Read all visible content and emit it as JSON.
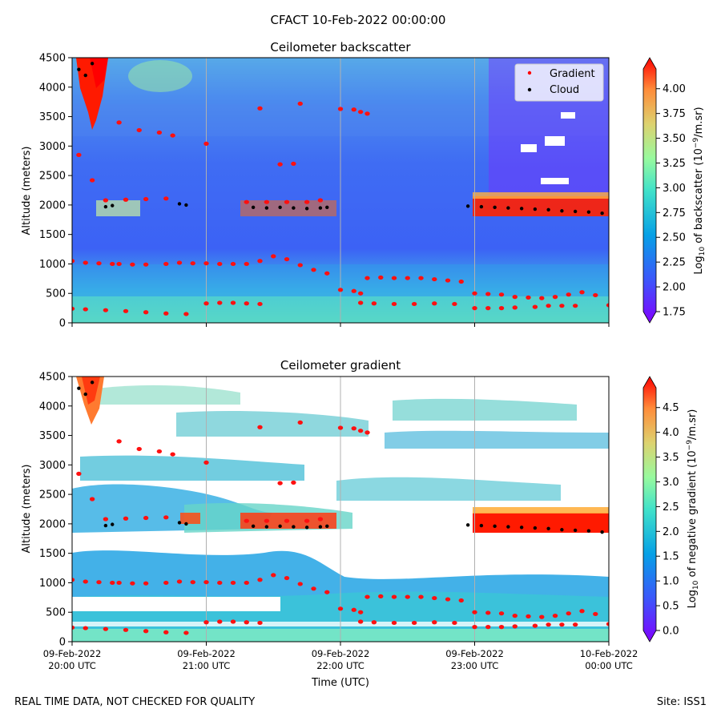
{
  "figure": {
    "suptitle": "CFACT 10-Feb-2022 00:00:00",
    "footer_left": "REAL TIME DATA, NOT CHECKED FOR QUALITY",
    "footer_right": "Site: ISS1"
  },
  "chart_data": [
    {
      "type": "heatmap",
      "title": "Ceilometer backscatter",
      "ylabel": "Altitude (meters)",
      "xlabel": "",
      "ylim": [
        0,
        4500
      ],
      "yticks": [
        "0",
        "500",
        "1000",
        "1500",
        "2000",
        "2500",
        "3000",
        "3500",
        "4000",
        "4500"
      ],
      "xticks": [],
      "colorbar": {
        "label": "Log10 of backscatter (10^-9/m.sr)",
        "range": [
          1.75,
          4.2
        ],
        "ticks": [
          "1.75",
          "2.00",
          "2.25",
          "2.50",
          "2.75",
          "3.00",
          "3.25",
          "3.50",
          "3.75",
          "4.00"
        ],
        "colormap": "rainbow"
      },
      "legend": {
        "placement": "top-right",
        "entries": [
          {
            "name": "Gradient",
            "color": "#ff0000"
          },
          {
            "name": "Cloud",
            "color": "#000000"
          }
        ]
      },
      "grid": true
    },
    {
      "type": "heatmap",
      "title": "Ceilometer gradient",
      "ylabel": "Altitude (meters)",
      "xlabel": "Time (UTC)",
      "ylim": [
        0,
        4500
      ],
      "yticks": [
        "0",
        "500",
        "1000",
        "1500",
        "2000",
        "2500",
        "3000",
        "3500",
        "4000",
        "4500"
      ],
      "xticks": [
        {
          "line1": "09-Feb-2022",
          "line2": "20:00 UTC"
        },
        {
          "line1": "09-Feb-2022",
          "line2": "21:00 UTC"
        },
        {
          "line1": "09-Feb-2022",
          "line2": "22:00 UTC"
        },
        {
          "line1": "09-Feb-2022",
          "line2": "23:00 UTC"
        },
        {
          "line1": "10-Feb-2022",
          "line2": "00:00 UTC"
        }
      ],
      "colorbar": {
        "label": "Log10 of negative gradient (10^-9/m.sr)",
        "range": [
          0,
          4.9
        ],
        "ticks": [
          "0.0",
          "0.5",
          "1.0",
          "1.5",
          "2.0",
          "2.5",
          "3.0",
          "3.5",
          "4.0",
          "4.5"
        ],
        "colormap": "rainbow"
      },
      "grid": true
    }
  ],
  "time_hours": [
    20,
    24
  ],
  "gradient_points": [
    [
      20.0,
      1050
    ],
    [
      20.1,
      1020
    ],
    [
      20.2,
      1010
    ],
    [
      20.3,
      1000
    ],
    [
      20.35,
      1000
    ],
    [
      20.45,
      990
    ],
    [
      20.55,
      990
    ],
    [
      20.7,
      1000
    ],
    [
      20.8,
      1020
    ],
    [
      20.9,
      1010
    ],
    [
      21.0,
      1010
    ],
    [
      21.1,
      1000
    ],
    [
      21.2,
      1000
    ],
    [
      21.3,
      1000
    ],
    [
      21.4,
      1050
    ],
    [
      21.5,
      1130
    ],
    [
      21.6,
      1080
    ],
    [
      21.7,
      980
    ],
    [
      21.8,
      900
    ],
    [
      21.9,
      840
    ],
    [
      20.0,
      240
    ],
    [
      20.1,
      230
    ],
    [
      20.25,
      215
    ],
    [
      20.4,
      200
    ],
    [
      20.55,
      180
    ],
    [
      20.7,
      160
    ],
    [
      20.85,
      150
    ],
    [
      21.0,
      330
    ],
    [
      21.1,
      340
    ],
    [
      21.2,
      340
    ],
    [
      21.3,
      330
    ],
    [
      21.4,
      320
    ],
    [
      22.0,
      560
    ],
    [
      22.1,
      540
    ],
    [
      22.15,
      500
    ],
    [
      22.2,
      760
    ],
    [
      22.3,
      770
    ],
    [
      22.4,
      760
    ],
    [
      22.5,
      760
    ],
    [
      22.6,
      760
    ],
    [
      22.7,
      740
    ],
    [
      22.8,
      720
    ],
    [
      22.9,
      700
    ],
    [
      23.0,
      500
    ],
    [
      23.1,
      490
    ],
    [
      23.2,
      480
    ],
    [
      23.3,
      440
    ],
    [
      23.4,
      430
    ],
    [
      23.5,
      420
    ],
    [
      23.6,
      440
    ],
    [
      23.7,
      480
    ],
    [
      23.8,
      520
    ],
    [
      23.9,
      470
    ],
    [
      24.0,
      300
    ],
    [
      22.15,
      340
    ],
    [
      22.25,
      330
    ],
    [
      22.4,
      320
    ],
    [
      22.55,
      320
    ],
    [
      22.7,
      330
    ],
    [
      22.85,
      320
    ],
    [
      23.0,
      250
    ],
    [
      23.1,
      250
    ],
    [
      23.2,
      250
    ],
    [
      23.3,
      260
    ],
    [
      23.45,
      270
    ],
    [
      23.55,
      290
    ],
    [
      23.65,
      290
    ],
    [
      23.75,
      290
    ],
    [
      20.25,
      2080
    ],
    [
      20.4,
      2090
    ],
    [
      20.55,
      2100
    ],
    [
      20.7,
      2110
    ],
    [
      21.3,
      2050
    ],
    [
      21.45,
      2050
    ],
    [
      21.6,
      2050
    ],
    [
      21.75,
      2050
    ],
    [
      21.85,
      2080
    ],
    [
      20.05,
      2850
    ],
    [
      20.15,
      2420
    ],
    [
      20.35,
      3400
    ],
    [
      20.5,
      3270
    ],
    [
      20.65,
      3230
    ],
    [
      20.75,
      3180
    ],
    [
      21.0,
      3040
    ],
    [
      21.4,
      3640
    ],
    [
      21.55,
      2690
    ],
    [
      21.65,
      2700
    ],
    [
      21.7,
      3720
    ],
    [
      22.0,
      3630
    ],
    [
      22.1,
      3620
    ],
    [
      22.15,
      3580
    ],
    [
      22.2,
      3550
    ]
  ],
  "cloud_points": [
    [
      20.25,
      1970
    ],
    [
      20.3,
      1990
    ],
    [
      20.8,
      2020
    ],
    [
      20.85,
      2000
    ],
    [
      21.35,
      1960
    ],
    [
      21.45,
      1950
    ],
    [
      21.55,
      1960
    ],
    [
      21.65,
      1950
    ],
    [
      21.75,
      1940
    ],
    [
      21.85,
      1950
    ],
    [
      21.9,
      1960
    ],
    [
      22.95,
      1980
    ],
    [
      23.05,
      1970
    ],
    [
      23.15,
      1960
    ],
    [
      23.25,
      1950
    ],
    [
      23.35,
      1940
    ],
    [
      23.45,
      1930
    ],
    [
      23.55,
      1920
    ],
    [
      23.65,
      1900
    ],
    [
      23.75,
      1890
    ],
    [
      23.85,
      1880
    ],
    [
      23.95,
      1860
    ],
    [
      20.05,
      4300
    ],
    [
      20.1,
      4200
    ],
    [
      20.15,
      4400
    ]
  ]
}
